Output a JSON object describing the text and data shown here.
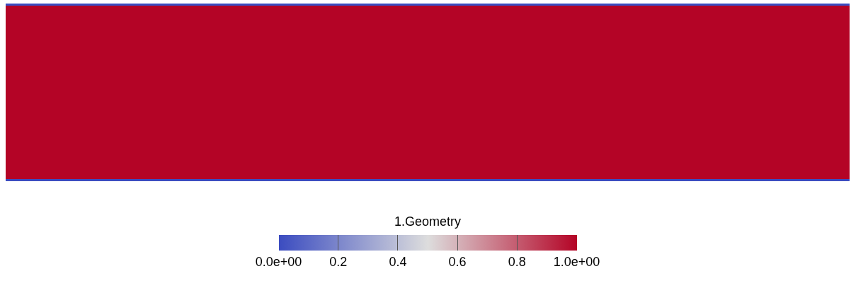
{
  "chart_data": {
    "type": "heatmap",
    "categories": [
      null
    ],
    "y_categories": [
      null
    ],
    "cells": [
      [
        1.0
      ]
    ],
    "clabel": "1.Geometry",
    "clim": [
      0,
      1
    ],
    "cticks": [
      {
        "value": 0,
        "label": "0.0e+00"
      },
      0.2,
      0.4,
      0.6,
      0.8,
      {
        "value": 1,
        "label": "1.0e+00"
      }
    ]
  }
}
